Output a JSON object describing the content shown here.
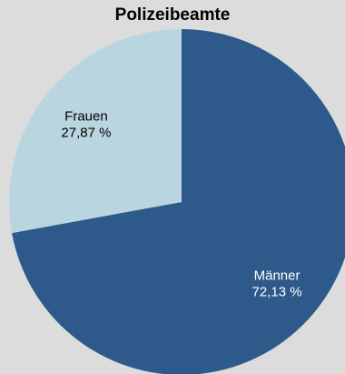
{
  "chart_data": {
    "type": "pie",
    "title": "Polizeibeamte",
    "slices": [
      {
        "label": "Männer",
        "value": 72.13,
        "value_label": "72,13 %",
        "color": "#2e5a8b",
        "label_color": "#ffffff"
      },
      {
        "label": "Frauen",
        "value": 27.87,
        "value_label": "27,87 %",
        "color": "#b9d5df",
        "label_color": "#000000"
      }
    ],
    "start_angle": "12 o'clock",
    "direction": "clockwise"
  }
}
